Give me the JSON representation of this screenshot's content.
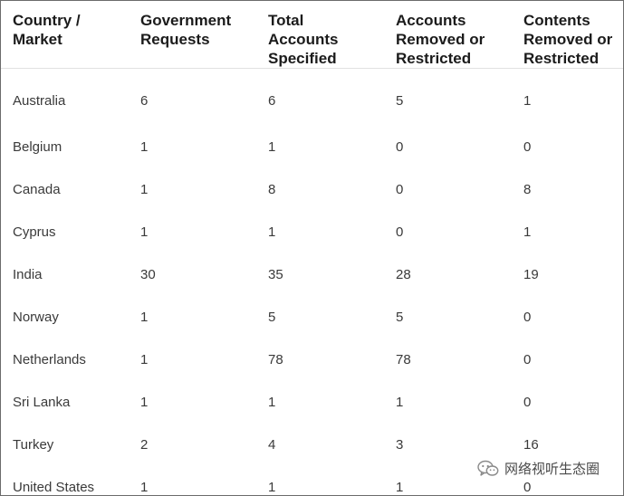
{
  "table": {
    "headers": [
      [
        "Country /",
        "Market"
      ],
      [
        "Government",
        "Requests"
      ],
      [
        "Total",
        "Accounts",
        "Specified"
      ],
      [
        "Accounts",
        "Removed or",
        "Restricted"
      ],
      [
        "Contents",
        "Removed or",
        "Restricted"
      ]
    ],
    "rows": [
      [
        "Australia",
        "6",
        "6",
        "5",
        "1"
      ],
      [
        "Belgium",
        "1",
        "1",
        "0",
        "0"
      ],
      [
        "Canada",
        "1",
        "8",
        "0",
        "8"
      ],
      [
        "Cyprus",
        "1",
        "1",
        "0",
        "1"
      ],
      [
        "India",
        "30",
        "35",
        "28",
        "19"
      ],
      [
        "Norway",
        "1",
        "5",
        "5",
        "0"
      ],
      [
        "Netherlands",
        "1",
        "78",
        "78",
        "0"
      ],
      [
        "Sri Lanka",
        "1",
        "1",
        "1",
        "0"
      ],
      [
        "Turkey",
        "2",
        "4",
        "3",
        "16"
      ],
      [
        "United States",
        "1",
        "1",
        "1",
        "0"
      ]
    ]
  },
  "watermark": {
    "icon": "wechat-icon",
    "text": "网络视听生态圈"
  }
}
